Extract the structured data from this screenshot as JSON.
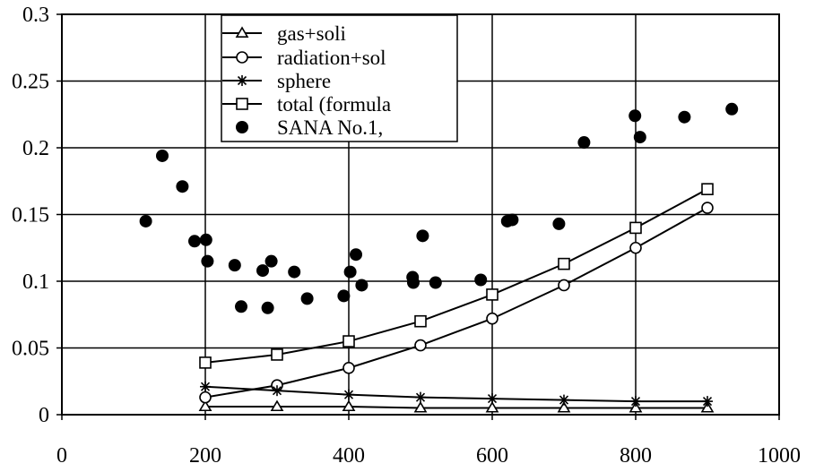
{
  "chart_data": {
    "type": "scatter",
    "title": "",
    "xlabel": "",
    "ylabel": "",
    "xlim": [
      0,
      1000
    ],
    "ylim": [
      0,
      0.3
    ],
    "grid": true,
    "legend_position": "top-center",
    "x_ticks": [
      "0",
      "200",
      "400",
      "600",
      "800",
      "1000"
    ],
    "y_ticks": [
      "0",
      "0.05",
      "0.1",
      "0.15",
      "0.2",
      "0.25",
      "0.3"
    ],
    "series": [
      {
        "name": "gas+soli",
        "marker": "triangle",
        "line": true,
        "x": [
          200,
          300,
          400,
          500,
          600,
          700,
          800,
          900
        ],
        "y": [
          0.006,
          0.006,
          0.006,
          0.005,
          0.005,
          0.005,
          0.005,
          0.005
        ]
      },
      {
        "name": "radiation+sol",
        "marker": "circle-open",
        "line": true,
        "x": [
          200,
          300,
          400,
          500,
          600,
          700,
          800,
          900
        ],
        "y": [
          0.013,
          0.022,
          0.035,
          0.052,
          0.072,
          0.097,
          0.125,
          0.155
        ]
      },
      {
        "name": "sphere",
        "marker": "asterisk",
        "line": true,
        "x": [
          200,
          300,
          400,
          500,
          600,
          700,
          800,
          900
        ],
        "y": [
          0.021,
          0.018,
          0.015,
          0.013,
          0.012,
          0.011,
          0.01,
          0.01
        ]
      },
      {
        "name": "total (formula",
        "marker": "square-open",
        "line": true,
        "x": [
          200,
          300,
          400,
          500,
          600,
          700,
          800,
          900
        ],
        "y": [
          0.039,
          0.045,
          0.055,
          0.07,
          0.09,
          0.113,
          0.14,
          0.169
        ]
      },
      {
        "name": "SANA No.1,",
        "marker": "circle-filled",
        "line": false,
        "x": [
          117,
          140,
          168,
          185,
          201,
          203,
          241,
          250,
          280,
          287,
          292,
          324,
          342,
          393,
          402,
          410,
          418,
          489,
          490,
          503,
          521,
          584,
          621,
          628,
          693,
          728,
          799,
          806,
          868,
          934
        ],
        "y": [
          0.145,
          0.194,
          0.171,
          0.13,
          0.131,
          0.115,
          0.112,
          0.081,
          0.108,
          0.08,
          0.115,
          0.107,
          0.087,
          0.089,
          0.107,
          0.12,
          0.097,
          0.103,
          0.099,
          0.134,
          0.099,
          0.101,
          0.145,
          0.146,
          0.143,
          0.204,
          0.224,
          0.208,
          0.223,
          0.229
        ]
      }
    ]
  }
}
